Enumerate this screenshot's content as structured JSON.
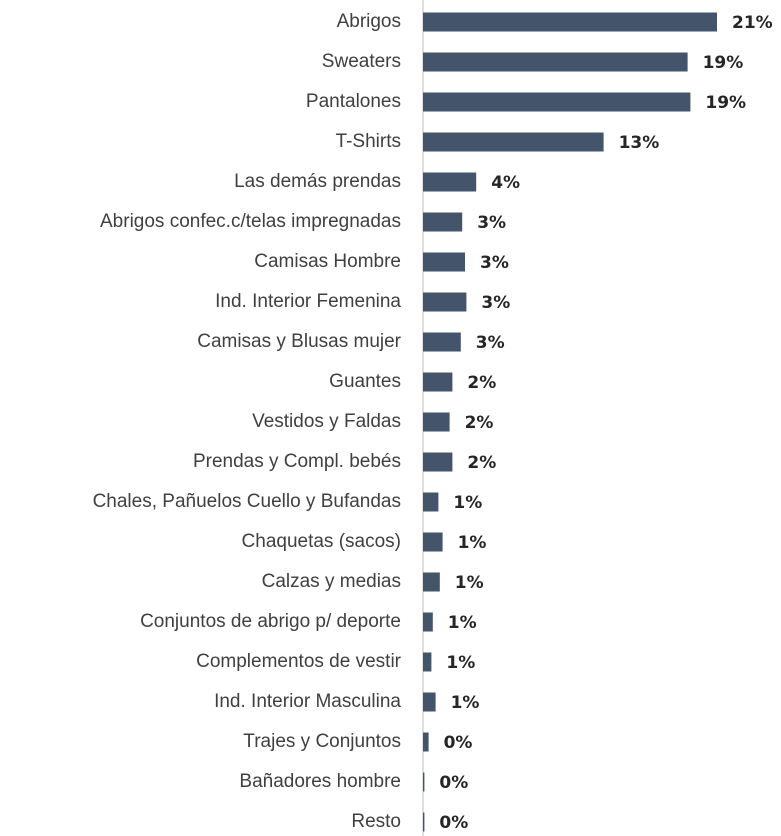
{
  "chart_data": {
    "type": "bar",
    "orientation": "horizontal",
    "color": "#44546a",
    "categories": [
      "Abrigos",
      "Sweaters",
      "Pantalones",
      "T-Shirts",
      "Las demás prendas",
      "Abrigos confec.c/telas impregnadas",
      "Camisas Hombre",
      "Ind. Interior Femenina",
      "Camisas y Blusas mujer",
      "Guantes",
      "Vestidos y Faldas",
      "Prendas y Compl. bebés",
      "Chales, Pañuelos Cuello y Bufandas",
      "Chaquetas (sacos)",
      "Calzas y medias",
      "Conjuntos de abrigo p/ deporte",
      "Complementos de vestir",
      "Ind. Interior Masculina",
      "Trajes y Conjuntos",
      "Bañadores hombre",
      "Resto"
    ],
    "values": [
      21,
      18.9,
      19.1,
      12.9,
      3.8,
      2.8,
      3.0,
      3.1,
      2.7,
      2.1,
      1.9,
      2.1,
      1.1,
      1.4,
      1.2,
      0.7,
      0.6,
      0.9,
      0.4,
      0.1,
      0.1
    ],
    "value_labels": [
      "21%",
      "19%",
      "19%",
      "13%",
      "4%",
      "3%",
      "3%",
      "3%",
      "3%",
      "2%",
      "2%",
      "2%",
      "1%",
      "1%",
      "1%",
      "1%",
      "1%",
      "1%",
      "0%",
      "0%",
      "0%"
    ]
  }
}
